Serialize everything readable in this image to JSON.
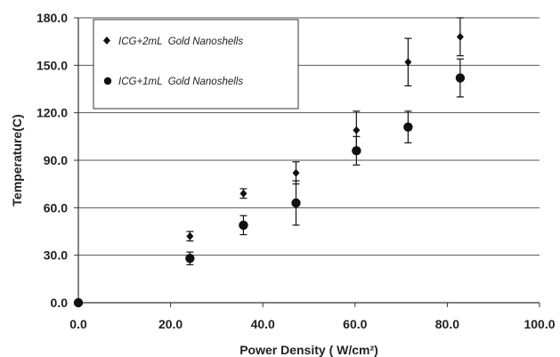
{
  "chart_data": {
    "type": "scatter",
    "xlabel": "Power Density ( W/cm²)",
    "ylabel": "Temperature(C)",
    "xlim": [
      0,
      100
    ],
    "ylim": [
      0,
      180
    ],
    "x_ticks": [
      "0.0",
      "20.0",
      "40.0",
      "60.0",
      "80.0",
      "100.0"
    ],
    "y_ticks": [
      "0.0",
      "30.0",
      "60.0",
      "90.0",
      "120.0",
      "150.0",
      "180.0"
    ],
    "grid": "horizontal",
    "legend_position": "top-left",
    "series": [
      {
        "name": "ICG+2mL  Gold Nanoshells",
        "marker": "diamond",
        "color": "#111111",
        "points": [
          {
            "x": 0,
            "y": 0,
            "err": 0
          },
          {
            "x": 24.2,
            "y": 42,
            "err": 3
          },
          {
            "x": 35.8,
            "y": 69,
            "err": 3
          },
          {
            "x": 47.2,
            "y": 82,
            "err": 7
          },
          {
            "x": 60.3,
            "y": 109,
            "err": 12
          },
          {
            "x": 71.5,
            "y": 152,
            "err": 15
          },
          {
            "x": 82.8,
            "y": 168,
            "err": 12
          }
        ]
      },
      {
        "name": "ICG+1mL  Gold Nanoshells",
        "marker": "circle",
        "color": "#111111",
        "points": [
          {
            "x": 0,
            "y": 0,
            "err": 0
          },
          {
            "x": 24.2,
            "y": 28,
            "err": 4
          },
          {
            "x": 35.8,
            "y": 49,
            "err": 6
          },
          {
            "x": 47.2,
            "y": 63,
            "err": 14
          },
          {
            "x": 60.3,
            "y": 96,
            "err": 9
          },
          {
            "x": 71.5,
            "y": 111,
            "err": 10
          },
          {
            "x": 82.8,
            "y": 142,
            "err": 12
          }
        ]
      }
    ]
  }
}
